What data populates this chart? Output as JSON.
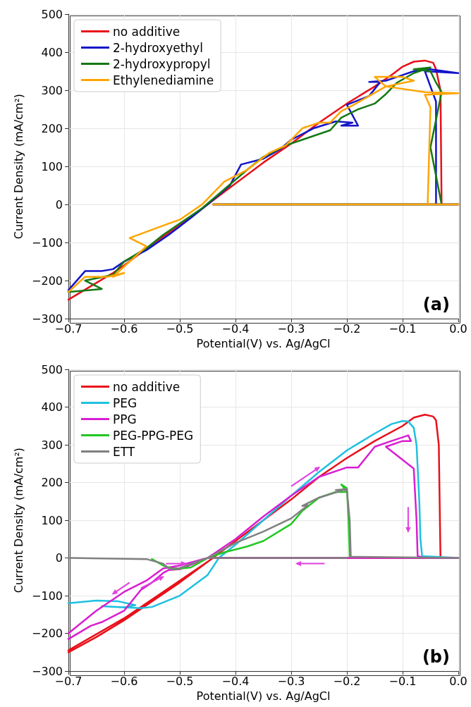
{
  "chart_data": [
    {
      "type": "line",
      "xlabel": "Potential(V) vs. Ag/AgCl",
      "ylabel": "Current Density (mA/cm²)",
      "annotations": [
        "(a)"
      ],
      "legend": "top left",
      "grid": true,
      "marker": "none",
      "line_style": "solid",
      "xlim": [
        -0.7,
        0
      ],
      "xticks": [
        {
          "value": -0.7,
          "label": "−0.7"
        },
        {
          "value": -0.6,
          "label": "−0.6"
        },
        {
          "value": -0.5,
          "label": "−0.5"
        },
        {
          "value": -0.4,
          "label": "−0.4"
        },
        {
          "value": -0.3,
          "label": "−0.3"
        },
        {
          "value": -0.2,
          "label": "−0.2"
        },
        {
          "value": -0.1,
          "label": "−0.1"
        },
        {
          "value": 0,
          "label": "0.0"
        }
      ],
      "ylim": [
        -300,
        500
      ],
      "yticks": [
        {
          "value": -300,
          "label": "−300"
        },
        {
          "value": -200,
          "label": "−200"
        },
        {
          "value": -100,
          "label": "−100"
        },
        0,
        100,
        200,
        300,
        400,
        500
      ],
      "series": [
        {
          "name": "no additive",
          "color": "#e8101a",
          "x": [
            -0.7,
            -0.66,
            -0.62,
            -0.6,
            -0.55,
            -0.5,
            -0.45,
            -0.4,
            -0.35,
            -0.3,
            -0.25,
            -0.2,
            -0.15,
            -0.12,
            -0.1,
            -0.08,
            -0.06,
            -0.045,
            -0.04,
            -0.032,
            -0.03,
            0,
            -0.44
          ],
          "values": [
            -250,
            -215,
            -180,
            -160,
            -105,
            -55,
            0,
            55,
            110,
            160,
            215,
            265,
            310,
            340,
            362,
            375,
            378,
            372,
            355,
            300,
            0,
            0,
            0
          ]
        },
        {
          "name": "2-hydroxyethyl",
          "color": "#1414c8",
          "x": [
            -0.7,
            -0.67,
            -0.64,
            -0.62,
            -0.6,
            -0.56,
            -0.52,
            -0.48,
            -0.45,
            -0.41,
            -0.39,
            -0.35,
            -0.32,
            -0.3,
            -0.26,
            -0.22,
            -0.19,
            -0.21,
            -0.18,
            -0.2,
            -0.16,
            -0.14,
            -0.16,
            -0.13,
            -0.11,
            -0.08,
            -0.05,
            0,
            -0.06,
            -0.05,
            -0.04,
            -0.04,
            0,
            -0.44
          ],
          "values": [
            -225,
            -175,
            -175,
            -170,
            -150,
            -120,
            -80,
            -35,
            0,
            50,
            105,
            120,
            145,
            170,
            200,
            218,
            215,
            207,
            207,
            262,
            285,
            322,
            322,
            325,
            335,
            350,
            355,
            345,
            350,
            310,
            270,
            0,
            0,
            0
          ]
        },
        {
          "name": "2-hydroxypropyl",
          "color": "#147814",
          "x": [
            -0.7,
            -0.64,
            -0.67,
            -0.62,
            -0.6,
            -0.56,
            -0.53,
            -0.5,
            -0.46,
            -0.42,
            -0.38,
            -0.35,
            -0.31,
            -0.28,
            -0.23,
            -0.21,
            -0.18,
            -0.15,
            -0.13,
            -0.11,
            -0.08,
            -0.05,
            -0.08,
            -0.05,
            -0.04,
            -0.03,
            -0.05,
            -0.03,
            0,
            -0.44
          ],
          "values": [
            -230,
            -222,
            -200,
            -185,
            -150,
            -115,
            -80,
            -50,
            -10,
            40,
            90,
            125,
            155,
            170,
            195,
            228,
            250,
            265,
            290,
            320,
            345,
            360,
            355,
            350,
            320,
            295,
            150,
            0,
            0,
            0
          ]
        },
        {
          "name": "Ethylenediamine",
          "color": "#ffa500",
          "x": [
            -0.7,
            -0.67,
            -0.63,
            -0.6,
            -0.62,
            -0.56,
            -0.59,
            -0.52,
            -0.5,
            -0.46,
            -0.42,
            -0.38,
            -0.34,
            -0.31,
            -0.28,
            -0.25,
            -0.23,
            -0.21,
            -0.19,
            -0.16,
            -0.13,
            -0.15,
            -0.1,
            -0.08,
            -0.13,
            -0.06,
            0,
            -0.06,
            -0.05,
            -0.055,
            0,
            -0.44
          ],
          "values": [
            -230,
            -190,
            -190,
            -180,
            -190,
            -110,
            -88,
            -50,
            -40,
            0,
            60,
            90,
            135,
            155,
            200,
            215,
            215,
            245,
            260,
            285,
            310,
            335,
            335,
            325,
            310,
            295,
            292,
            288,
            255,
            0,
            0,
            0
          ]
        }
      ]
    },
    {
      "type": "line",
      "xlabel": "Potential(V) vs. Ag/AgCl",
      "ylabel": "Current Density (mA/cm²)",
      "annotations": [
        "(b)"
      ],
      "legend": "top left",
      "grid": true,
      "marker": "none",
      "line_style": "solid",
      "xlim": [
        -0.7,
        0
      ],
      "xticks": [
        {
          "value": -0.7,
          "label": "−0.7"
        },
        {
          "value": -0.6,
          "label": "−0.6"
        },
        {
          "value": -0.5,
          "label": "−0.5"
        },
        {
          "value": -0.4,
          "label": "−0.4"
        },
        {
          "value": -0.3,
          "label": "−0.3"
        },
        {
          "value": -0.2,
          "label": "−0.2"
        },
        {
          "value": -0.1,
          "label": "−0.1"
        },
        {
          "value": 0,
          "label": "0.0"
        }
      ],
      "ylim": [
        -300,
        500
      ],
      "yticks": [
        {
          "value": -300,
          "label": "−300"
        },
        {
          "value": -200,
          "label": "−200"
        },
        {
          "value": -100,
          "label": "−100"
        },
        0,
        100,
        200,
        300,
        400,
        500
      ],
      "series": [
        {
          "name": "no additive",
          "color": "#e8101a",
          "x": [
            -0.7,
            -0.65,
            -0.6,
            -0.55,
            -0.5,
            -0.45,
            -0.4,
            -0.35,
            -0.3,
            -0.25,
            -0.2,
            -0.15,
            -0.1,
            -0.08,
            -0.06,
            -0.045,
            -0.04,
            -0.035,
            -0.032,
            0,
            -0.44,
            -0.5,
            -0.6,
            -0.7
          ],
          "values": [
            -250,
            -210,
            -165,
            -115,
            -65,
            -10,
            45,
            100,
            155,
            215,
            265,
            310,
            350,
            372,
            380,
            375,
            365,
            300,
            0,
            0,
            0,
            -60,
            -160,
            -245
          ]
        },
        {
          "name": "PEG",
          "color": "#1ec0e0",
          "x": [
            -0.7,
            -0.65,
            -0.61,
            -0.58,
            -0.6,
            -0.64,
            -0.57,
            -0.55,
            -0.5,
            -0.45,
            -0.43,
            -0.4,
            -0.35,
            -0.3,
            -0.25,
            -0.2,
            -0.15,
            -0.12,
            -0.1,
            -0.09,
            -0.08,
            -0.075,
            -0.07,
            -0.068,
            -0.065,
            0
          ],
          "values": [
            -120,
            -113,
            -115,
            -125,
            -131,
            -128,
            -133,
            -130,
            -100,
            -45,
            0,
            35,
            100,
            165,
            228,
            285,
            330,
            355,
            363,
            362,
            345,
            300,
            150,
            50,
            5,
            0
          ]
        },
        {
          "name": "PPG",
          "color": "#d91ed1",
          "x": [
            -0.7,
            -0.66,
            -0.64,
            -0.6,
            -0.57,
            -0.55,
            -0.53,
            -0.52,
            -0.5,
            -0.45,
            -0.4,
            -0.35,
            -0.3,
            -0.25,
            -0.2,
            -0.18,
            -0.15,
            -0.12,
            -0.1,
            -0.09,
            -0.085,
            -0.1,
            -0.13,
            -0.08,
            -0.075,
            -0.073,
            -0.06,
            0,
            -0.45,
            -0.5,
            -0.53,
            -0.56,
            -0.6,
            -0.65,
            -0.7
          ],
          "values": [
            -215,
            -180,
            -170,
            -140,
            -85,
            -65,
            -40,
            -32,
            -30,
            0,
            50,
            110,
            165,
            215,
            240,
            240,
            295,
            310,
            320,
            325,
            310,
            310,
            295,
            237,
            100,
            5,
            0,
            0,
            0,
            -20,
            -28,
            -60,
            -90,
            -140,
            -200
          ]
        },
        {
          "name": "PEG-PPG-PEG",
          "color": "#22c822",
          "x": [
            -0.55,
            -0.53,
            -0.51,
            -0.48,
            -0.45,
            -0.42,
            -0.38,
            -0.35,
            -0.3,
            -0.28,
            -0.25,
            -0.22,
            -0.2,
            -0.21,
            -0.2,
            -0.197,
            -0.195
          ],
          "values": [
            -3,
            -20,
            -30,
            -25,
            0,
            15,
            30,
            45,
            90,
            125,
            160,
            175,
            175,
            195,
            185,
            100,
            3
          ]
        },
        {
          "name": "ETT",
          "color": "#808080",
          "x": [
            -0.7,
            -0.56,
            -0.53,
            -0.52,
            -0.5,
            -0.47,
            -0.45,
            -0.4,
            -0.35,
            -0.3,
            -0.27,
            -0.28,
            -0.25,
            -0.2,
            -0.22,
            -0.2,
            -0.195,
            -0.193,
            0,
            -0.1,
            -0.45,
            -0.2
          ],
          "values": [
            0,
            -3,
            -15,
            -28,
            -27,
            -10,
            0,
            40,
            70,
            105,
            140,
            138,
            160,
            183,
            180,
            180,
            100,
            3,
            0,
            null,
            0,
            0
          ]
        }
      ]
    }
  ]
}
